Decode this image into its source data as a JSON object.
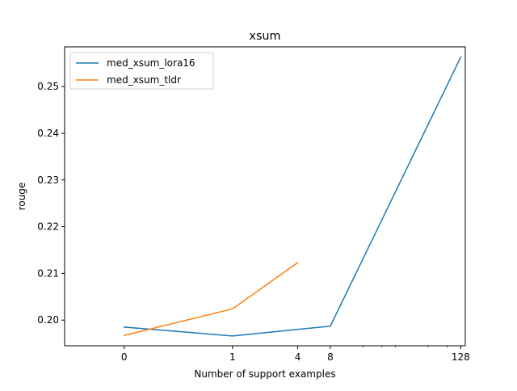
{
  "chart_data": {
    "type": "line",
    "title": "xsum",
    "xlabel": "Number of support examples",
    "ylabel": "rouge",
    "x_scale": "symlog",
    "xlim": [
      -0.55,
      141
    ],
    "ylim": [
      0.1945,
      0.2585
    ],
    "x_ticks": [
      0,
      1,
      4,
      8,
      128
    ],
    "x_tick_labels": [
      "0",
      "1",
      "4",
      "8",
      "128"
    ],
    "y_ticks": [
      0.2,
      0.21,
      0.22,
      0.23,
      0.24,
      0.25
    ],
    "y_tick_labels": [
      "0.20",
      "0.21",
      "0.22",
      "0.23",
      "0.24",
      "0.25"
    ],
    "grid": false,
    "legend_position": "upper-left",
    "series": [
      {
        "name": "med_xsum_lora16",
        "color": "#1f77b4",
        "x": [
          0,
          1,
          8,
          128
        ],
        "y": [
          0.1985,
          0.1966,
          0.1987,
          0.2563
        ]
      },
      {
        "name": "med_xsum_tldr",
        "color": "#ff7f0e",
        "x": [
          0,
          1,
          4
        ],
        "y": [
          0.1967,
          0.2024,
          0.2123
        ]
      }
    ]
  }
}
